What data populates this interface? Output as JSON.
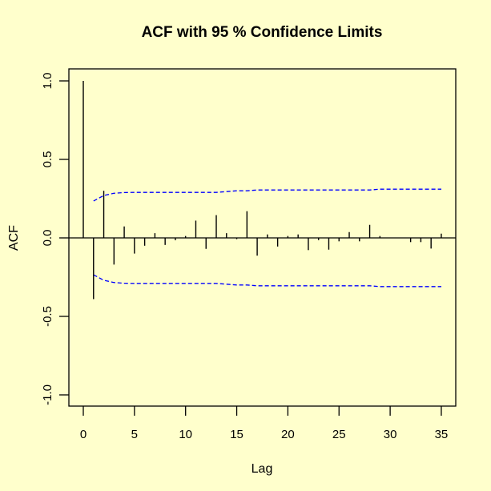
{
  "chart_data": {
    "type": "bar",
    "subtype": "acf-stem",
    "title": "ACF with 95 % Confidence Limits",
    "xlabel": "Lag",
    "ylabel": "ACF",
    "xlim": [
      -1.4,
      36.4
    ],
    "ylim": [
      -1.08,
      1.08
    ],
    "x_ticks": [
      0,
      5,
      10,
      15,
      20,
      25,
      30,
      35
    ],
    "x_tick_labels": [
      "0",
      "5",
      "10",
      "15",
      "20",
      "25",
      "30",
      "35"
    ],
    "y_ticks": [
      -1.0,
      -0.5,
      0.0,
      0.5,
      1.0
    ],
    "y_tick_labels": [
      "-1.0",
      "-0.5",
      "0.0",
      "0.5",
      "1.0"
    ],
    "grid": false,
    "legend": null,
    "lags": [
      0,
      1,
      2,
      3,
      4,
      5,
      6,
      7,
      8,
      9,
      10,
      11,
      12,
      13,
      14,
      15,
      16,
      17,
      18,
      19,
      20,
      21,
      22,
      23,
      24,
      25,
      26,
      27,
      28,
      29,
      30,
      31,
      32,
      33,
      34,
      35
    ],
    "acf": [
      1.0,
      -0.39,
      0.3,
      -0.17,
      0.073,
      -0.1,
      -0.05,
      0.03,
      -0.045,
      -0.015,
      0.012,
      0.11,
      -0.07,
      0.145,
      0.03,
      -0.008,
      0.17,
      -0.113,
      0.022,
      -0.055,
      0.012,
      0.022,
      -0.078,
      -0.014,
      -0.075,
      -0.022,
      0.037,
      -0.022,
      0.083,
      0.012,
      0.0,
      0.0,
      -0.027,
      -0.027,
      -0.068,
      0.027
    ],
    "confidence_limits": {
      "level": "95%",
      "lags": [
        1,
        2,
        3,
        4,
        5,
        6,
        7,
        8,
        9,
        10,
        11,
        12,
        13,
        14,
        15,
        16,
        17,
        18,
        19,
        20,
        21,
        22,
        23,
        24,
        25,
        26,
        27,
        28,
        29,
        30,
        31,
        32,
        33,
        34,
        35
      ],
      "upper": [
        0.235,
        0.27,
        0.284,
        0.289,
        0.29,
        0.29,
        0.29,
        0.29,
        0.29,
        0.29,
        0.29,
        0.29,
        0.29,
        0.295,
        0.3,
        0.3,
        0.305,
        0.305,
        0.305,
        0.305,
        0.305,
        0.305,
        0.305,
        0.305,
        0.305,
        0.305,
        0.305,
        0.305,
        0.31,
        0.31,
        0.31,
        0.31,
        0.31,
        0.31,
        0.31
      ],
      "lower": [
        -0.235,
        -0.27,
        -0.284,
        -0.289,
        -0.29,
        -0.29,
        -0.29,
        -0.29,
        -0.29,
        -0.29,
        -0.29,
        -0.29,
        -0.29,
        -0.295,
        -0.3,
        -0.3,
        -0.305,
        -0.305,
        -0.305,
        -0.305,
        -0.305,
        -0.305,
        -0.305,
        -0.305,
        -0.305,
        -0.305,
        -0.305,
        -0.305,
        -0.31,
        -0.31,
        -0.31,
        -0.31,
        -0.31,
        -0.31,
        -0.31
      ],
      "color": "#0000FF",
      "style": "dashed"
    },
    "colors": {
      "background": "#FFFFCC",
      "bars": "#000000",
      "confidence": "#0000FF",
      "axes": "#000000"
    }
  }
}
